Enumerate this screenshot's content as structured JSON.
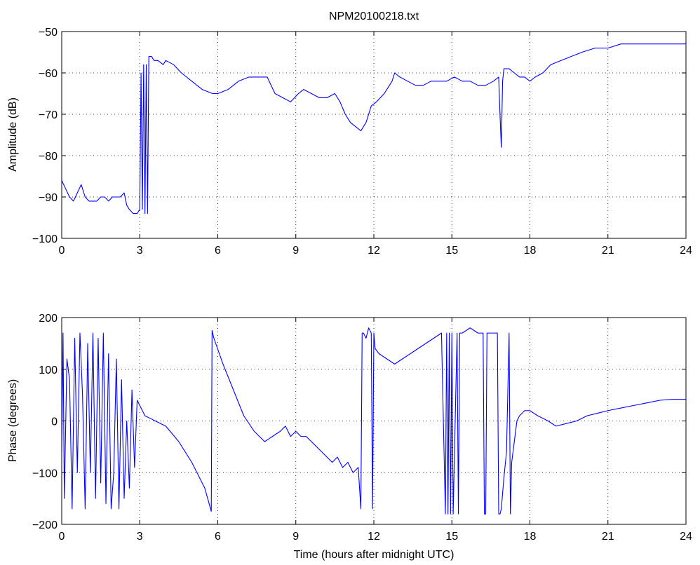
{
  "figure_title": "NPM20100218.txt",
  "chart_data": [
    {
      "type": "line",
      "title": "NPM20100218.txt",
      "xlabel": "",
      "ylabel": "Amplitude (dB)",
      "xlim": [
        0,
        24
      ],
      "ylim": [
        -100,
        -50
      ],
      "xticks": [
        0,
        3,
        6,
        9,
        12,
        15,
        18,
        21,
        24
      ],
      "yticks": [
        -100,
        -90,
        -80,
        -70,
        -60,
        -50
      ],
      "grid": true,
      "color": "#0000ff",
      "series": [
        {
          "x": [
            0,
            0.15,
            0.3,
            0.45,
            0.6,
            0.75,
            0.9,
            1.05,
            1.2,
            1.35,
            1.5,
            1.65,
            1.8,
            1.95,
            2.1,
            2.25,
            2.4,
            2.5,
            2.6,
            2.75,
            2.9,
            3.0,
            3.05,
            3.1,
            3.15,
            3.2,
            3.25,
            3.3,
            3.35,
            3.45,
            3.55,
            3.7,
            3.9,
            4.0,
            4.3,
            4.6,
            5.0,
            5.4,
            5.8,
            6.0,
            6.4,
            6.8,
            7.2,
            7.6,
            7.9,
            8.2,
            8.5,
            8.8,
            9.1,
            9.3,
            9.6,
            9.9,
            10.2,
            10.5,
            10.7,
            10.9,
            11.1,
            11.3,
            11.5,
            11.7,
            11.9,
            12.1,
            12.4,
            12.7,
            12.8,
            13.0,
            13.3,
            13.6,
            13.9,
            14.2,
            14.5,
            14.8,
            15.1,
            15.4,
            15.7,
            16.0,
            16.3,
            16.6,
            16.8,
            16.85,
            16.9,
            16.95,
            17.0,
            17.2,
            17.4,
            17.6,
            17.8,
            18.0,
            18.2,
            18.5,
            18.8,
            19.2,
            19.6,
            20.0,
            20.5,
            21.0,
            21.5,
            22.0,
            22.5,
            23.0,
            23.5,
            24.0
          ],
          "y": [
            -86,
            -88,
            -90,
            -91,
            -89,
            -87,
            -90,
            -91,
            -91,
            -91,
            -90,
            -90,
            -91,
            -90,
            -90,
            -90,
            -89,
            -92,
            -93,
            -94,
            -94,
            -93,
            -60,
            -93,
            -58,
            -94,
            -58,
            -94,
            -56,
            -56,
            -57,
            -57,
            -58,
            -57,
            -58,
            -60,
            -62,
            -64,
            -65,
            -65,
            -64,
            -62,
            -61,
            -61,
            -61,
            -65,
            -66,
            -67,
            -65,
            -64,
            -65,
            -66,
            -66,
            -65,
            -67,
            -70,
            -72,
            -73,
            -74,
            -72,
            -68,
            -67,
            -65,
            -62,
            -60,
            -61,
            -62,
            -63,
            -63,
            -62,
            -62,
            -62,
            -61,
            -62,
            -62,
            -63,
            -63,
            -62,
            -61,
            -70,
            -78,
            -62,
            -59,
            -59,
            -60,
            -61,
            -61,
            -62,
            -61,
            -60,
            -58,
            -57,
            -56,
            -55,
            -54,
            -54,
            -53,
            -53,
            -53,
            -53,
            -53,
            -53
          ]
        }
      ]
    },
    {
      "type": "line",
      "title": "",
      "xlabel": "Time (hours after midnight UTC)",
      "ylabel": "Phase (degrees)",
      "xlim": [
        0,
        24
      ],
      "ylim": [
        -200,
        200
      ],
      "xticks": [
        0,
        3,
        6,
        9,
        12,
        15,
        18,
        21,
        24
      ],
      "yticks": [
        -200,
        -100,
        0,
        100,
        200
      ],
      "grid": true,
      "color": "#0000ff",
      "series": [
        {
          "x": [
            0,
            0.05,
            0.1,
            0.2,
            0.3,
            0.4,
            0.5,
            0.6,
            0.7,
            0.8,
            0.9,
            1.0,
            1.1,
            1.2,
            1.3,
            1.4,
            1.5,
            1.6,
            1.7,
            1.8,
            1.9,
            2.0,
            2.1,
            2.2,
            2.3,
            2.4,
            2.5,
            2.6,
            2.7,
            2.8,
            2.9,
            3.0,
            3.1,
            3.2,
            3.4,
            3.6,
            4.0,
            4.5,
            5.0,
            5.5,
            5.75,
            5.78,
            5.85,
            6.2,
            6.6,
            7.0,
            7.4,
            7.8,
            8.1,
            8.4,
            8.6,
            8.8,
            9.0,
            9.2,
            9.4,
            9.6,
            9.8,
            10.0,
            10.2,
            10.4,
            10.6,
            10.8,
            11.0,
            11.2,
            11.4,
            11.5,
            11.55,
            11.6,
            11.7,
            11.8,
            11.9,
            11.95,
            12.0,
            12.05,
            12.2,
            12.5,
            12.8,
            13.1,
            13.4,
            13.7,
            14.0,
            14.3,
            14.6,
            14.75,
            14.8,
            14.85,
            14.9,
            14.95,
            15.0,
            15.05,
            15.2,
            15.25,
            15.3,
            15.4,
            15.7,
            16.0,
            16.2,
            16.25,
            16.3,
            16.35,
            16.6,
            16.75,
            16.8,
            16.85,
            16.9,
            17.0,
            17.1,
            17.2,
            17.25,
            17.3,
            17.4,
            17.5,
            17.6,
            17.8,
            18.0,
            18.3,
            18.7,
            19.0,
            19.4,
            19.8,
            20.2,
            20.6,
            21.0,
            21.5,
            22.0,
            22.5,
            23.0,
            23.5,
            24.0
          ],
          "y": [
            -60,
            170,
            -150,
            120,
            80,
            -170,
            160,
            -100,
            170,
            50,
            -170,
            150,
            -100,
            170,
            -150,
            160,
            -120,
            170,
            -160,
            130,
            -170,
            -100,
            120,
            -170,
            80,
            -150,
            0,
            -130,
            60,
            -90,
            40,
            30,
            20,
            10,
            5,
            0,
            -10,
            -40,
            -80,
            -130,
            -175,
            175,
            160,
            110,
            60,
            10,
            -20,
            -40,
            -30,
            -20,
            -10,
            -30,
            -20,
            -30,
            -30,
            -40,
            -50,
            -60,
            -70,
            -80,
            -70,
            -90,
            -80,
            -100,
            -90,
            -170,
            170,
            170,
            160,
            180,
            170,
            -170,
            170,
            140,
            130,
            120,
            110,
            120,
            130,
            140,
            150,
            160,
            170,
            -180,
            170,
            -180,
            170,
            -180,
            170,
            -180,
            170,
            -180,
            170,
            170,
            180,
            170,
            170,
            -180,
            -180,
            170,
            170,
            170,
            -180,
            -180,
            -170,
            -110,
            -60,
            170,
            -180,
            -80,
            -40,
            0,
            10,
            20,
            20,
            10,
            0,
            -10,
            -5,
            0,
            10,
            15,
            20,
            25,
            30,
            35,
            40,
            42,
            42
          ]
        }
      ]
    }
  ]
}
